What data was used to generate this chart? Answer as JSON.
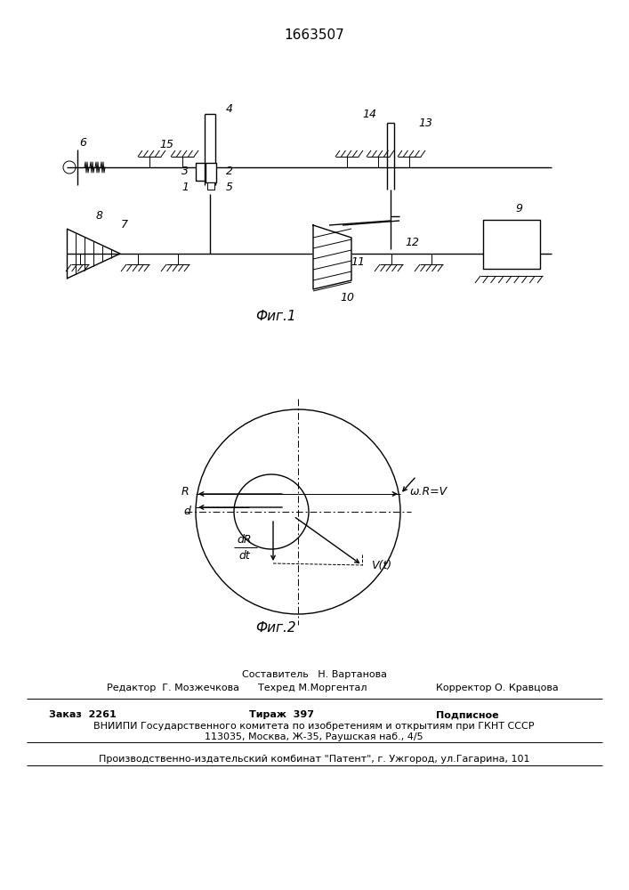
{
  "title": "1663507",
  "fig1_caption": "Фиг.1",
  "fig2_caption": "Фиг.2",
  "bg_color": "#ffffff",
  "footer_sestavitel": "Составитель   Н. Вартанова",
  "footer_redaktor": "Редактор  Г. Мозжечкова",
  "footer_tekhred": "Техред М.Моргентал",
  "footer_korrektor": "Корректор О. Кравцова",
  "footer_zakaz": "Заказ  2261",
  "footer_tirazh": "Тираж  397",
  "footer_podpisnoe": "Подписное",
  "footer_vniip1": "ВНИИПИ Государственного комитета по изобретениям и открытиям при ГКНТ СССР",
  "footer_vniip2": "113035, Москва, Ж-35, Раушская наб., 4/5",
  "footer_proizv": "Производственно-издательский комбинат \"Патент\", г. Ужгород, ул.Гагарина, 101",
  "omega_label": "ω.R=V",
  "v_label": "V(t)",
  "dR_label": "dR",
  "dt_label": "dt",
  "R_label": "R",
  "d_label": "d"
}
